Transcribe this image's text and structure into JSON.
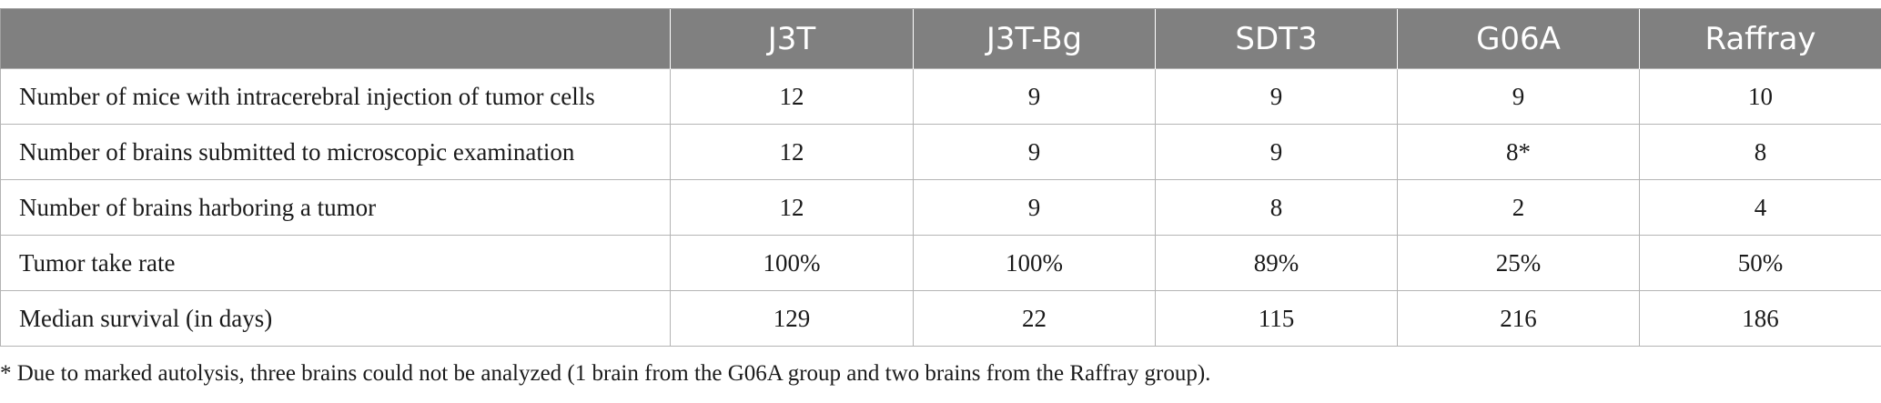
{
  "table": {
    "columns": [
      "",
      "J3T",
      "J3T-Bg",
      "SDT3",
      "G06A",
      "Raffray"
    ],
    "rows": [
      {
        "label": "Number of mice with intracerebral injection of tumor cells",
        "values": [
          "12",
          "9",
          "9",
          "9",
          "10"
        ]
      },
      {
        "label": "Number of brains submitted to microscopic examination",
        "values": [
          "12",
          "9",
          "9",
          "8*",
          "8"
        ]
      },
      {
        "label": "Number of brains harboring a tumor",
        "values": [
          "12",
          "9",
          "8",
          "2",
          "4"
        ]
      },
      {
        "label": "Tumor take rate",
        "values": [
          "100%",
          "100%",
          "89%",
          "25%",
          "50%"
        ]
      },
      {
        "label": "Median survival (in days)",
        "values": [
          "129",
          "22",
          "115",
          "216",
          "186"
        ]
      }
    ]
  },
  "footnote": "* Due to marked autolysis, three brains could not be analyzed (1 brain from the G06A group and two brains from the Raffray group).",
  "colors": {
    "header_bg": "#808080",
    "header_text": "#ffffff",
    "border": "#b4b4b4"
  }
}
